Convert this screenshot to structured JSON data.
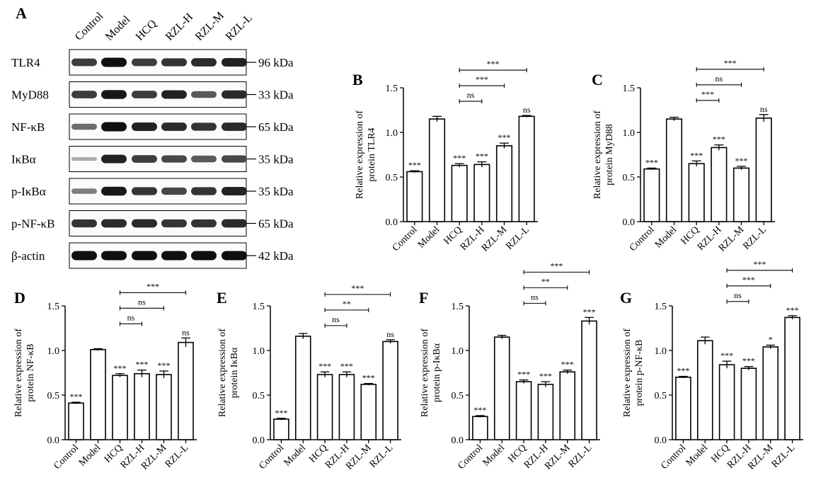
{
  "western_blot": {
    "panel_letter": "A",
    "lanes": [
      "Control",
      "Model",
      "HCQ",
      "RZL-H",
      "RZL-M",
      "RZL-L"
    ],
    "rows": [
      {
        "protein": "TLR4",
        "size": "96 kDa",
        "intensity": [
          0.75,
          1.0,
          0.75,
          0.8,
          0.85,
          0.9
        ]
      },
      {
        "protein": "MyD88",
        "size": "33 kDa",
        "intensity": [
          0.75,
          0.95,
          0.75,
          0.9,
          0.6,
          0.85
        ]
      },
      {
        "protein": "NF-κB",
        "size": "65 kDa",
        "intensity": [
          0.5,
          1.0,
          0.9,
          0.85,
          0.8,
          0.85
        ]
      },
      {
        "protein": "IκBα",
        "size": "35 kDa",
        "intensity": [
          0.15,
          0.9,
          0.75,
          0.7,
          0.6,
          0.7
        ]
      },
      {
        "protein": "p-IκBα",
        "size": "35 kDa",
        "intensity": [
          0.4,
          0.95,
          0.8,
          0.7,
          0.8,
          0.9
        ]
      },
      {
        "protein": "p-NF-κB",
        "size": "65 kDa",
        "intensity": [
          0.8,
          0.85,
          0.85,
          0.8,
          0.8,
          0.85
        ]
      },
      {
        "protein": "β-actin",
        "size": "42 kDa",
        "intensity": [
          1.0,
          1.0,
          1.0,
          1.0,
          1.0,
          1.0
        ]
      }
    ]
  },
  "chart_data": [
    {
      "panel": "B",
      "type": "bar",
      "categories": [
        "Control",
        "Model",
        "HCQ",
        "RZL-H",
        "RZL-M",
        "RZL-L"
      ],
      "values": [
        0.56,
        1.15,
        0.63,
        0.64,
        0.85,
        1.18
      ],
      "errors": [
        0.01,
        0.03,
        0.02,
        0.03,
        0.03,
        0.01
      ],
      "bar_sig": [
        "***",
        "",
        "***",
        "***",
        "***",
        "ns"
      ],
      "ylabel": [
        "Relative expression of",
        "protein TLR4"
      ],
      "ylim": [
        0,
        1.5
      ],
      "yticks": [
        "0.0",
        "0.5",
        "1.0",
        "1.5"
      ],
      "comparisons": [
        {
          "from": 2,
          "to": 3,
          "label": "ns"
        },
        {
          "from": 2,
          "to": 4,
          "label": "***"
        },
        {
          "from": 2,
          "to": 5,
          "label": "***"
        }
      ]
    },
    {
      "panel": "C",
      "type": "bar",
      "categories": [
        "Control",
        "Model",
        "HCQ",
        "RZL-H",
        "RZL-M",
        "RZL-L"
      ],
      "values": [
        0.59,
        1.15,
        0.65,
        0.83,
        0.6,
        1.16
      ],
      "errors": [
        0.01,
        0.02,
        0.03,
        0.03,
        0.02,
        0.04
      ],
      "bar_sig": [
        "***",
        "",
        "***",
        "***",
        "***",
        "ns"
      ],
      "ylabel": [
        "Relative expression of",
        "protein MyD88"
      ],
      "ylim": [
        0,
        1.5
      ],
      "yticks": [
        "0.0",
        "0.5",
        "1.0",
        "1.5"
      ],
      "comparisons": [
        {
          "from": 2,
          "to": 3,
          "label": "***"
        },
        {
          "from": 2,
          "to": 4,
          "label": "ns"
        },
        {
          "from": 2,
          "to": 5,
          "label": "***"
        }
      ]
    },
    {
      "panel": "D",
      "type": "bar",
      "categories": [
        "Control",
        "Model",
        "HCQ",
        "RZL-H",
        "RZL-M",
        "RZL-L"
      ],
      "values": [
        0.41,
        1.01,
        0.72,
        0.74,
        0.73,
        1.09
      ],
      "errors": [
        0.01,
        0.01,
        0.02,
        0.04,
        0.04,
        0.05
      ],
      "bar_sig": [
        "***",
        "",
        "***",
        "***",
        "***",
        "ns"
      ],
      "ylabel": [
        "Relative expression of",
        "protein NF-κB"
      ],
      "ylim": [
        0,
        1.5
      ],
      "yticks": [
        "0.0",
        "0.5",
        "1.0",
        "1.5"
      ],
      "comparisons": [
        {
          "from": 2,
          "to": 3,
          "label": "ns"
        },
        {
          "from": 2,
          "to": 4,
          "label": "ns"
        },
        {
          "from": 2,
          "to": 5,
          "label": "***"
        }
      ]
    },
    {
      "panel": "E",
      "type": "bar",
      "categories": [
        "Control",
        "Model",
        "HCQ",
        "RZL-H",
        "RZL-M",
        "RZL-L"
      ],
      "values": [
        0.23,
        1.16,
        0.73,
        0.73,
        0.62,
        1.1
      ],
      "errors": [
        0.01,
        0.03,
        0.03,
        0.03,
        0.01,
        0.02
      ],
      "bar_sig": [
        "***",
        "",
        "***",
        "***",
        "***",
        "ns"
      ],
      "ylabel": [
        "Relative expression of",
        "protein IκBα"
      ],
      "ylim": [
        0,
        1.5
      ],
      "yticks": [
        "0.0",
        "0.5",
        "1.0",
        "1.5"
      ],
      "comparisons": [
        {
          "from": 2,
          "to": 3,
          "label": "ns"
        },
        {
          "from": 2,
          "to": 4,
          "label": "**"
        },
        {
          "from": 2,
          "to": 5,
          "label": "***"
        }
      ]
    },
    {
      "panel": "F",
      "type": "bar",
      "categories": [
        "Control",
        "Model",
        "HCQ",
        "RZL-H",
        "RZL-M",
        "RZL-L"
      ],
      "values": [
        0.26,
        1.15,
        0.65,
        0.62,
        0.76,
        1.33
      ],
      "errors": [
        0.01,
        0.02,
        0.02,
        0.03,
        0.02,
        0.04
      ],
      "bar_sig": [
        "***",
        "",
        "***",
        "***",
        "***",
        "***"
      ],
      "ylabel": [
        "Relative expression of",
        "protein p-IκBα"
      ],
      "ylim": [
        0,
        1.5
      ],
      "yticks": [
        "0.0",
        "0.5",
        "1.0",
        "1.5"
      ],
      "comparisons": [
        {
          "from": 2,
          "to": 3,
          "label": "ns"
        },
        {
          "from": 2,
          "to": 4,
          "label": "**"
        },
        {
          "from": 2,
          "to": 5,
          "label": "***"
        }
      ]
    },
    {
      "panel": "G",
      "type": "bar",
      "categories": [
        "Control",
        "Model",
        "HCQ",
        "RZL-H",
        "RZL-M",
        "RZL-L"
      ],
      "values": [
        0.7,
        1.11,
        0.84,
        0.8,
        1.04,
        1.37
      ],
      "errors": [
        0.01,
        0.04,
        0.04,
        0.02,
        0.02,
        0.02
      ],
      "bar_sig": [
        "***",
        "",
        "***",
        "***",
        "*",
        "***"
      ],
      "ylabel": [
        "Relative expression of",
        "protein p-NF-κB"
      ],
      "ylim": [
        0,
        1.5
      ],
      "yticks": [
        "0.0",
        "0.5",
        "1.0",
        "1.5"
      ],
      "comparisons": [
        {
          "from": 2,
          "to": 3,
          "label": "ns"
        },
        {
          "from": 2,
          "to": 4,
          "label": "***"
        },
        {
          "from": 2,
          "to": 5,
          "label": "***"
        }
      ]
    }
  ]
}
